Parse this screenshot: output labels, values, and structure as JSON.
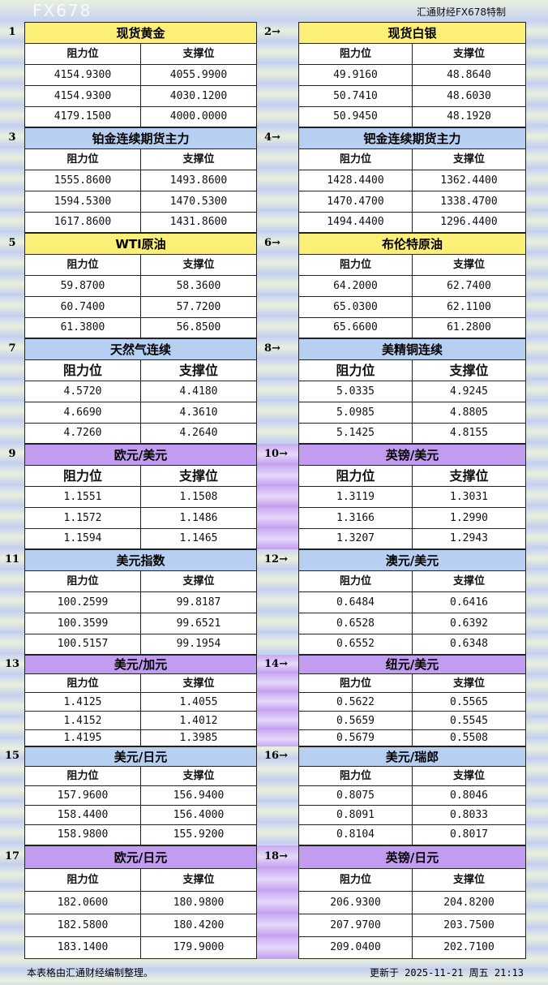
{
  "brand": "汇通财经FX678特制",
  "col_headers": {
    "resistance": "阻力位",
    "support": "支撑位"
  },
  "colors": {
    "yellow": "#fbef78",
    "blue": "#b7d0f2",
    "purple": "#c29cf0"
  },
  "groups": [
    {
      "left": {
        "num": "1",
        "title": "现货黄金",
        "rows": [
          [
            "4154.9300",
            "4055.9900"
          ],
          [
            "4154.9300",
            "4030.1200"
          ],
          [
            "4179.1500",
            "4000.0000"
          ]
        ]
      },
      "right": {
        "num": "2→",
        "title": "现货白银",
        "rows": [
          [
            "49.9160",
            "48.8640"
          ],
          [
            "50.7410",
            "48.6030"
          ],
          [
            "50.9450",
            "48.1920"
          ]
        ]
      },
      "color": "yellow"
    },
    {
      "left": {
        "num": "3",
        "title": "铂金连续期货主力",
        "rows": [
          [
            "1555.8600",
            "1493.8600"
          ],
          [
            "1594.5300",
            "1470.5300"
          ],
          [
            "1617.8600",
            "1431.8600"
          ]
        ]
      },
      "right": {
        "num": "4→",
        "title": "钯金连续期货主力",
        "rows": [
          [
            "1428.4400",
            "1362.4400"
          ],
          [
            "1470.4700",
            "1338.4700"
          ],
          [
            "1494.4400",
            "1296.4400"
          ]
        ]
      },
      "color": "blue"
    },
    {
      "left": {
        "num": "5",
        "title": "WTI原油",
        "rows": [
          [
            "59.8700",
            "58.3600"
          ],
          [
            "60.7400",
            "57.7200"
          ],
          [
            "61.3800",
            "56.8500"
          ]
        ]
      },
      "right": {
        "num": "6→",
        "title": "布伦特原油",
        "rows": [
          [
            "64.2000",
            "62.7400"
          ],
          [
            "65.0300",
            "62.1100"
          ],
          [
            "65.6600",
            "61.2800"
          ]
        ]
      },
      "color": "yellow"
    },
    {
      "left": {
        "num": "7",
        "title": "天然气连续",
        "rows": [
          [
            "4.5720",
            "4.4180"
          ],
          [
            "4.6690",
            "4.3610"
          ],
          [
            "4.7260",
            "4.2640"
          ]
        ]
      },
      "right": {
        "num": "8→",
        "title": "美精铜连续",
        "rows": [
          [
            "5.0335",
            "4.9245"
          ],
          [
            "5.0985",
            "4.8805"
          ],
          [
            "5.1425",
            "4.8155"
          ]
        ]
      },
      "color": "blue"
    },
    {
      "left": {
        "num": "9",
        "title": "欧元/美元",
        "rows": [
          [
            "1.1551",
            "1.1508"
          ],
          [
            "1.1572",
            "1.1486"
          ],
          [
            "1.1594",
            "1.1465"
          ]
        ]
      },
      "right": {
        "num": "10→",
        "title": "英镑/美元",
        "rows": [
          [
            "1.3119",
            "1.3031"
          ],
          [
            "1.3166",
            "1.2990"
          ],
          [
            "1.3207",
            "1.2943"
          ]
        ]
      },
      "color": "purple"
    },
    {
      "left": {
        "num": "11",
        "title": "美元指数",
        "rows": [
          [
            "100.2599",
            "99.8187"
          ],
          [
            "100.3599",
            "99.6521"
          ],
          [
            "100.5157",
            "99.1954"
          ]
        ]
      },
      "right": {
        "num": "12→",
        "title": "澳元/美元",
        "rows": [
          [
            "0.6484",
            "0.6416"
          ],
          [
            "0.6528",
            "0.6392"
          ],
          [
            "0.6552",
            "0.6348"
          ]
        ]
      },
      "color": "blue"
    },
    {
      "left": {
        "num": "13",
        "title": "美元/加元",
        "rows": [
          [
            "1.4125",
            "1.4055"
          ],
          [
            "1.4152",
            "1.4012"
          ],
          [
            "1.4195",
            "1.3985"
          ]
        ]
      },
      "right": {
        "num": "14→",
        "title": "纽元/美元",
        "rows": [
          [
            "0.5622",
            "0.5565"
          ],
          [
            "0.5659",
            "0.5545"
          ],
          [
            "0.5679",
            "0.5508"
          ]
        ]
      },
      "color": "purple"
    },
    {
      "left": {
        "num": "15",
        "title": "美元/日元",
        "rows": [
          [
            "157.9600",
            "156.9400"
          ],
          [
            "158.4400",
            "156.4000"
          ],
          [
            "158.9800",
            "155.9200"
          ]
        ]
      },
      "right": {
        "num": "16→",
        "title": "美元/瑞郎",
        "rows": [
          [
            "0.8075",
            "0.8046"
          ],
          [
            "0.8091",
            "0.8033"
          ],
          [
            "0.8104",
            "0.8017"
          ]
        ]
      },
      "color": "blue"
    },
    {
      "left": {
        "num": "17",
        "title": "欧元/日元",
        "rows": [
          [
            "182.0600",
            "180.9800"
          ],
          [
            "182.5800",
            "180.4200"
          ],
          [
            "183.1400",
            "179.9000"
          ]
        ]
      },
      "right": {
        "num": "18→",
        "title": "英镑/日元",
        "rows": [
          [
            "206.9300",
            "204.8200"
          ],
          [
            "207.9700",
            "203.7500"
          ],
          [
            "209.0400",
            "202.7100"
          ]
        ]
      },
      "color": "purple"
    }
  ],
  "footer": {
    "note": "本表格由汇通财经编制整理。",
    "updated": "更新于 2025-11-21 周五 21:13"
  },
  "watermark": "FX678"
}
